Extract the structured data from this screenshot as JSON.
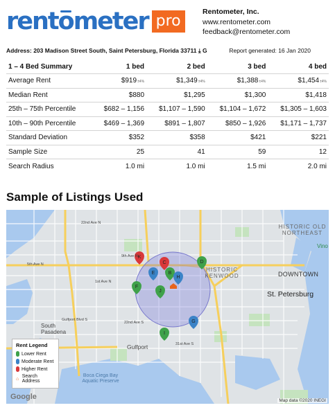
{
  "logo": {
    "text_before": "rent",
    "o": "o",
    "text_after": "meter",
    "badge": "pro"
  },
  "company": {
    "name": "Rentometer, Inc.",
    "website": "www.rentometer.com",
    "email": "feedback@rentometer.com"
  },
  "address_line": "Address: 203 Madison Street South, Saint Petersburg, Florida 33711",
  "report_generated": "Report generated: 16 Jan 2020",
  "table": {
    "headers": [
      "1 – 4 Bed Summary",
      "1 bed",
      "2 bed",
      "3 bed",
      "4 bed"
    ],
    "rows": [
      {
        "label": "Average Rent",
        "cells": [
          "$919",
          "$1,349",
          "$1,388",
          "$1,454"
        ],
        "suffix": "±4%"
      },
      {
        "label": "Median Rent",
        "cells": [
          "$880",
          "$1,295",
          "$1,300",
          "$1,418"
        ]
      },
      {
        "label": "25th – 75th Percentile",
        "cells": [
          "$682 – 1,156",
          "$1,107 – 1,590",
          "$1,104 – 1,672",
          "$1,305 – 1,603"
        ]
      },
      {
        "label": "10th – 90th Percentile",
        "cells": [
          "$469 – 1,369",
          "$891 – 1,807",
          "$850 – 1,926",
          "$1,171 – 1,737"
        ]
      },
      {
        "label": "Standard Deviation",
        "cells": [
          "$352",
          "$358",
          "$421",
          "$221"
        ]
      },
      {
        "label": "Sample Size",
        "cells": [
          "25",
          "41",
          "59",
          "12"
        ]
      },
      {
        "label": "Search Radius",
        "cells": [
          "1.0 mi",
          "1.0 mi",
          "1.5 mi",
          "2.0 mi"
        ]
      }
    ]
  },
  "section_title": "Sample of Listings Used",
  "map": {
    "places": {
      "historic_old_northeast": "HISTORIC OLD NORTHEAST",
      "historic_kenwood": "HISTORIC KENWOOD",
      "downtown": "DOWNTOWN",
      "st_petersburg": "St. Petersburg",
      "south_pasadena": "South Pasadena",
      "gulfport": "Gulfport",
      "boca_ciega": "Boca Ciega Bay Aquatic Preserve",
      "vino": "Vino"
    },
    "streets": {
      "ave22n": "22nd Ave N",
      "ave5n": "5th Ave N",
      "ave1n": "1st Ave N",
      "ave9n": "9th Ave N",
      "ave22s": "22nd Ave S",
      "ave31s": "31st Ave S",
      "gulfport_blvd": "Gulfport Blvd S"
    },
    "markers": [
      {
        "letter": "K",
        "type": "high"
      },
      {
        "letter": "C",
        "type": "high"
      },
      {
        "letter": "D",
        "type": "low"
      },
      {
        "letter": "E",
        "type": "moderate"
      },
      {
        "letter": "B",
        "type": "low"
      },
      {
        "letter": "H",
        "type": "moderate"
      },
      {
        "letter": "F",
        "type": "low"
      },
      {
        "letter": "J",
        "type": "low"
      },
      {
        "letter": "G",
        "type": "moderate"
      },
      {
        "letter": "I",
        "type": "low"
      }
    ],
    "legend": {
      "title": "Rent Legend",
      "items": [
        "Lower Rent",
        "Moderate Rent",
        "Higher Rent",
        "Search Address"
      ]
    },
    "attribution": "Map data ©2020 INEGI",
    "google": "Google"
  },
  "colors": {
    "brand_blue": "#2a70c2",
    "brand_orange": "#f26a21",
    "lower_rent": "#3fa14a",
    "moderate_rent": "#3b83c7",
    "higher_rent": "#d9383a",
    "search_address": "#e8641c"
  },
  "icons": [
    "download-icon",
    "google-g-icon"
  ]
}
